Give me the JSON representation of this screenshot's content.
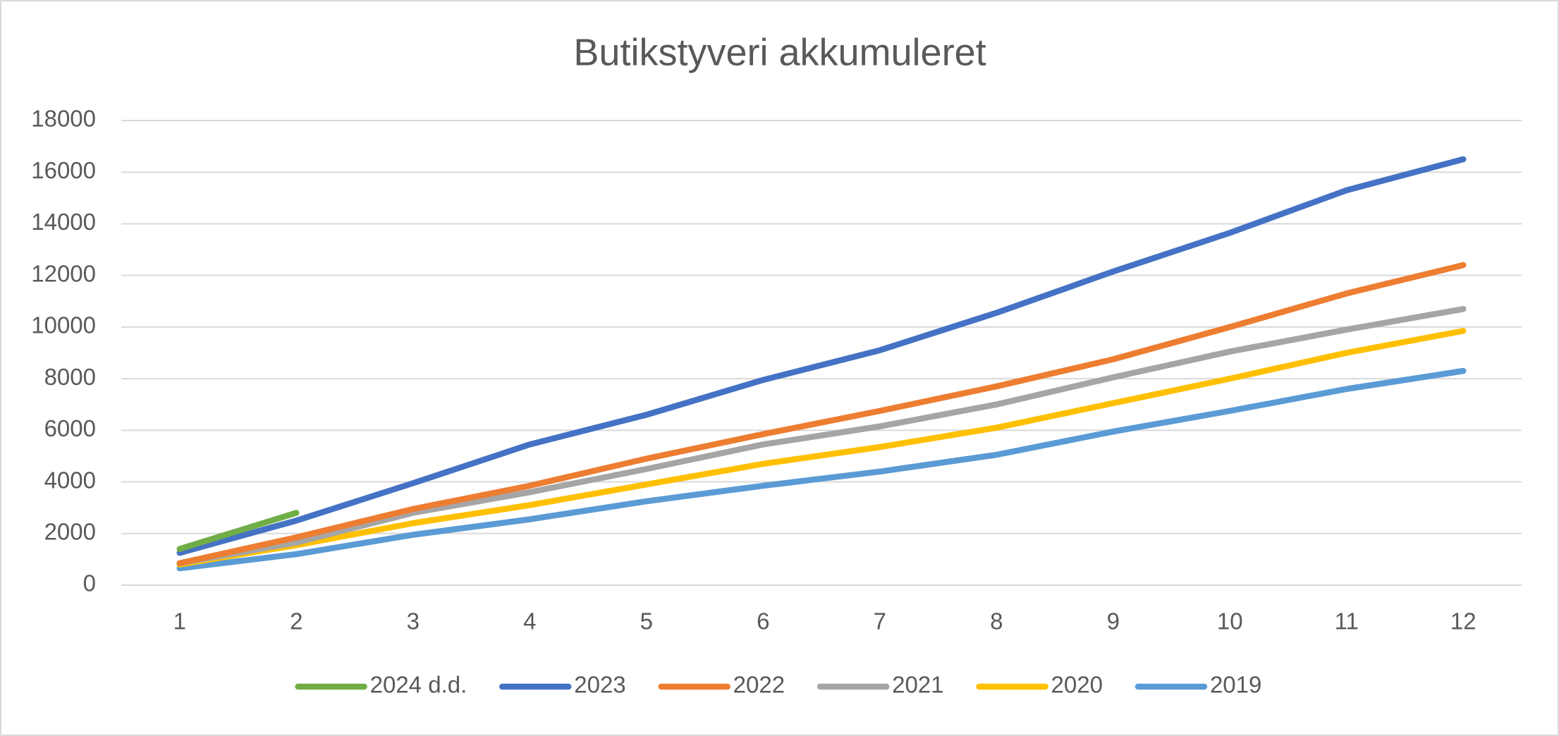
{
  "chart_data": {
    "type": "line",
    "title": "Butikstyveri akkumuleret",
    "categories": [
      "1",
      "2",
      "3",
      "4",
      "5",
      "6",
      "7",
      "8",
      "9",
      "10",
      "11",
      "12"
    ],
    "series": [
      {
        "name": "2024 d.d.",
        "color": "#70ad47",
        "values": [
          1400,
          2800,
          null,
          null,
          null,
          null,
          null,
          null,
          null,
          null,
          null,
          null
        ]
      },
      {
        "name": "2023",
        "color": "#4472c4",
        "values": [
          1250,
          2500,
          3950,
          5450,
          6600,
          7950,
          9100,
          10550,
          12150,
          13650,
          15300,
          16500
        ]
      },
      {
        "name": "2022",
        "color": "#ed7d31",
        "values": [
          850,
          1850,
          2950,
          3850,
          4900,
          5850,
          6750,
          7700,
          8750,
          10000,
          11300,
          12400
        ]
      },
      {
        "name": "2021",
        "color": "#a5a5a5",
        "values": [
          850,
          1650,
          2800,
          3600,
          4500,
          5450,
          6150,
          7000,
          8050,
          9050,
          9900,
          10700
        ]
      },
      {
        "name": "2020",
        "color": "#ffc000",
        "values": [
          800,
          1550,
          2400,
          3100,
          3900,
          4700,
          5350,
          6100,
          7050,
          8000,
          9000,
          9850
        ]
      },
      {
        "name": "2019",
        "color": "#5b9bd5",
        "values": [
          650,
          1200,
          1950,
          2550,
          3250,
          3850,
          4400,
          5050,
          5950,
          6750,
          7600,
          8300
        ]
      }
    ],
    "ylim": [
      0,
      18000
    ],
    "yticks": [
      0,
      2000,
      4000,
      6000,
      8000,
      10000,
      12000,
      14000,
      16000,
      18000
    ],
    "grid": true,
    "legend": "bottom"
  }
}
